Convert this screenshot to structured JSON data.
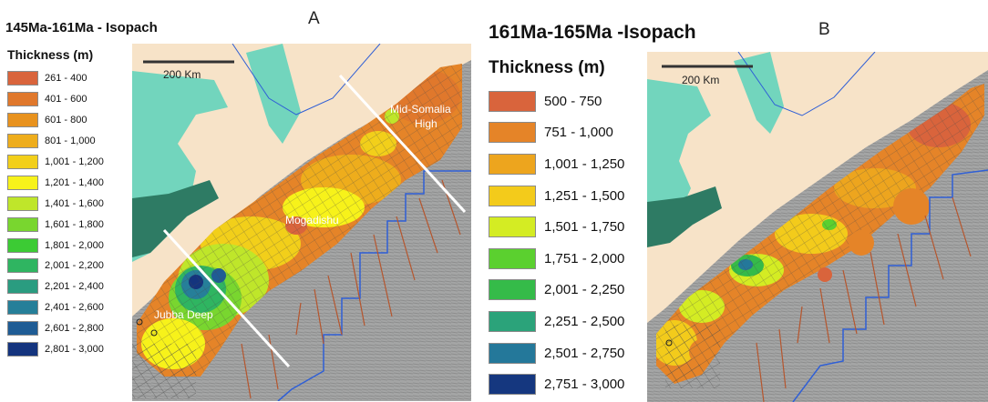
{
  "panels": [
    {
      "letter": "A",
      "title": "145Ma-161Ma - Isopach",
      "legend_title": "Thickness (m)",
      "legend": [
        {
          "label": "261 - 400",
          "color": "#d9643c"
        },
        {
          "label": "401 - 600",
          "color": "#e0782c"
        },
        {
          "label": "601 - 800",
          "color": "#e8921e"
        },
        {
          "label": "801 - 1,000",
          "color": "#eead1c"
        },
        {
          "label": "1,001 - 1,200",
          "color": "#f2cf1a"
        },
        {
          "label": "1,201 - 1,400",
          "color": "#f7f21a"
        },
        {
          "label": "1,401 - 1,600",
          "color": "#bfe62a"
        },
        {
          "label": "1,601 - 1,800",
          "color": "#79d62f"
        },
        {
          "label": "1,801 - 2,000",
          "color": "#3ccb34"
        },
        {
          "label": "2,001 - 2,200",
          "color": "#2fb561"
        },
        {
          "label": "2,201 - 2,400",
          "color": "#2a9c80"
        },
        {
          "label": "2,401 - 2,600",
          "color": "#267f99"
        },
        {
          "label": "2,601 - 2,800",
          "color": "#1f5c95"
        },
        {
          "label": "2,801 - 3,000",
          "color": "#14347e"
        }
      ],
      "scale_label": "200 Km",
      "place_labels": [
        "Mid-Somalia",
        "High",
        "Mogadishu",
        "Jubba Deep"
      ]
    },
    {
      "letter": "B",
      "title": "161Ma-165Ma -Isopach",
      "legend_title": "Thickness (m)",
      "legend": [
        {
          "label": "500 - 750",
          "color": "#d9643c"
        },
        {
          "label": "751 - 1,000",
          "color": "#e58428"
        },
        {
          "label": "1,001 - 1,250",
          "color": "#eda51e"
        },
        {
          "label": "1,251 - 1,500",
          "color": "#f3cb1b"
        },
        {
          "label": "1,501 - 1,750",
          "color": "#d4ec23"
        },
        {
          "label": "1,751 - 2,000",
          "color": "#5bd02f"
        },
        {
          "label": "2,001 - 2,250",
          "color": "#35bb49"
        },
        {
          "label": "2,251 - 2,500",
          "color": "#2ba37a"
        },
        {
          "label": "2,501 - 2,750",
          "color": "#24789a"
        },
        {
          "label": "2,751 - 3,000",
          "color": "#15377f"
        }
      ],
      "scale_label": "200 Km"
    }
  ],
  "colors": {
    "land": "#f7e3c8",
    "ocean_gray": "#9fa0a0",
    "lake": "#72d5bd",
    "lake_dark": "#2e7b64",
    "fault": "#b5562e",
    "boundary": "#2f5fd6",
    "section_line": "#ffffff",
    "grid_line": "#4a4a4a"
  }
}
